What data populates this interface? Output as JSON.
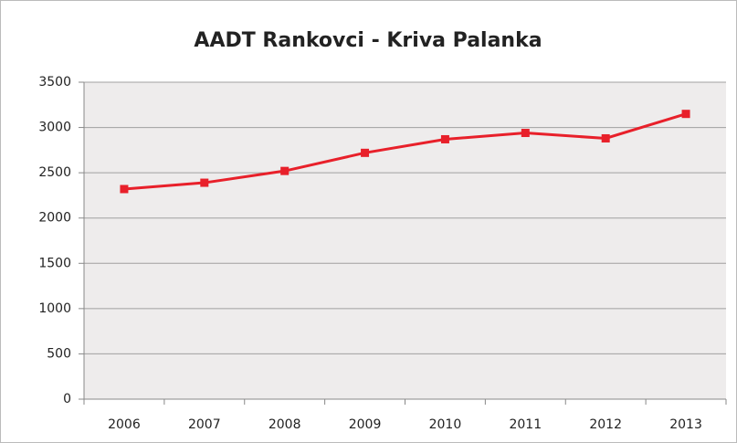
{
  "chart_data": {
    "type": "line",
    "title": "AADT Rankovci - Kriva Palanka",
    "categories": [
      "2006",
      "2007",
      "2008",
      "2009",
      "2010",
      "2011",
      "2012",
      "2013"
    ],
    "series": [
      {
        "name": "AADT",
        "color": "#e8202a",
        "values": [
          2320,
          2390,
          2520,
          2720,
          2870,
          2940,
          2880,
          3150
        ]
      }
    ],
    "ylim": [
      0,
      3500
    ],
    "yticks": [
      0,
      500,
      1000,
      1500,
      2000,
      2500,
      3000,
      3500
    ],
    "grid": true
  }
}
